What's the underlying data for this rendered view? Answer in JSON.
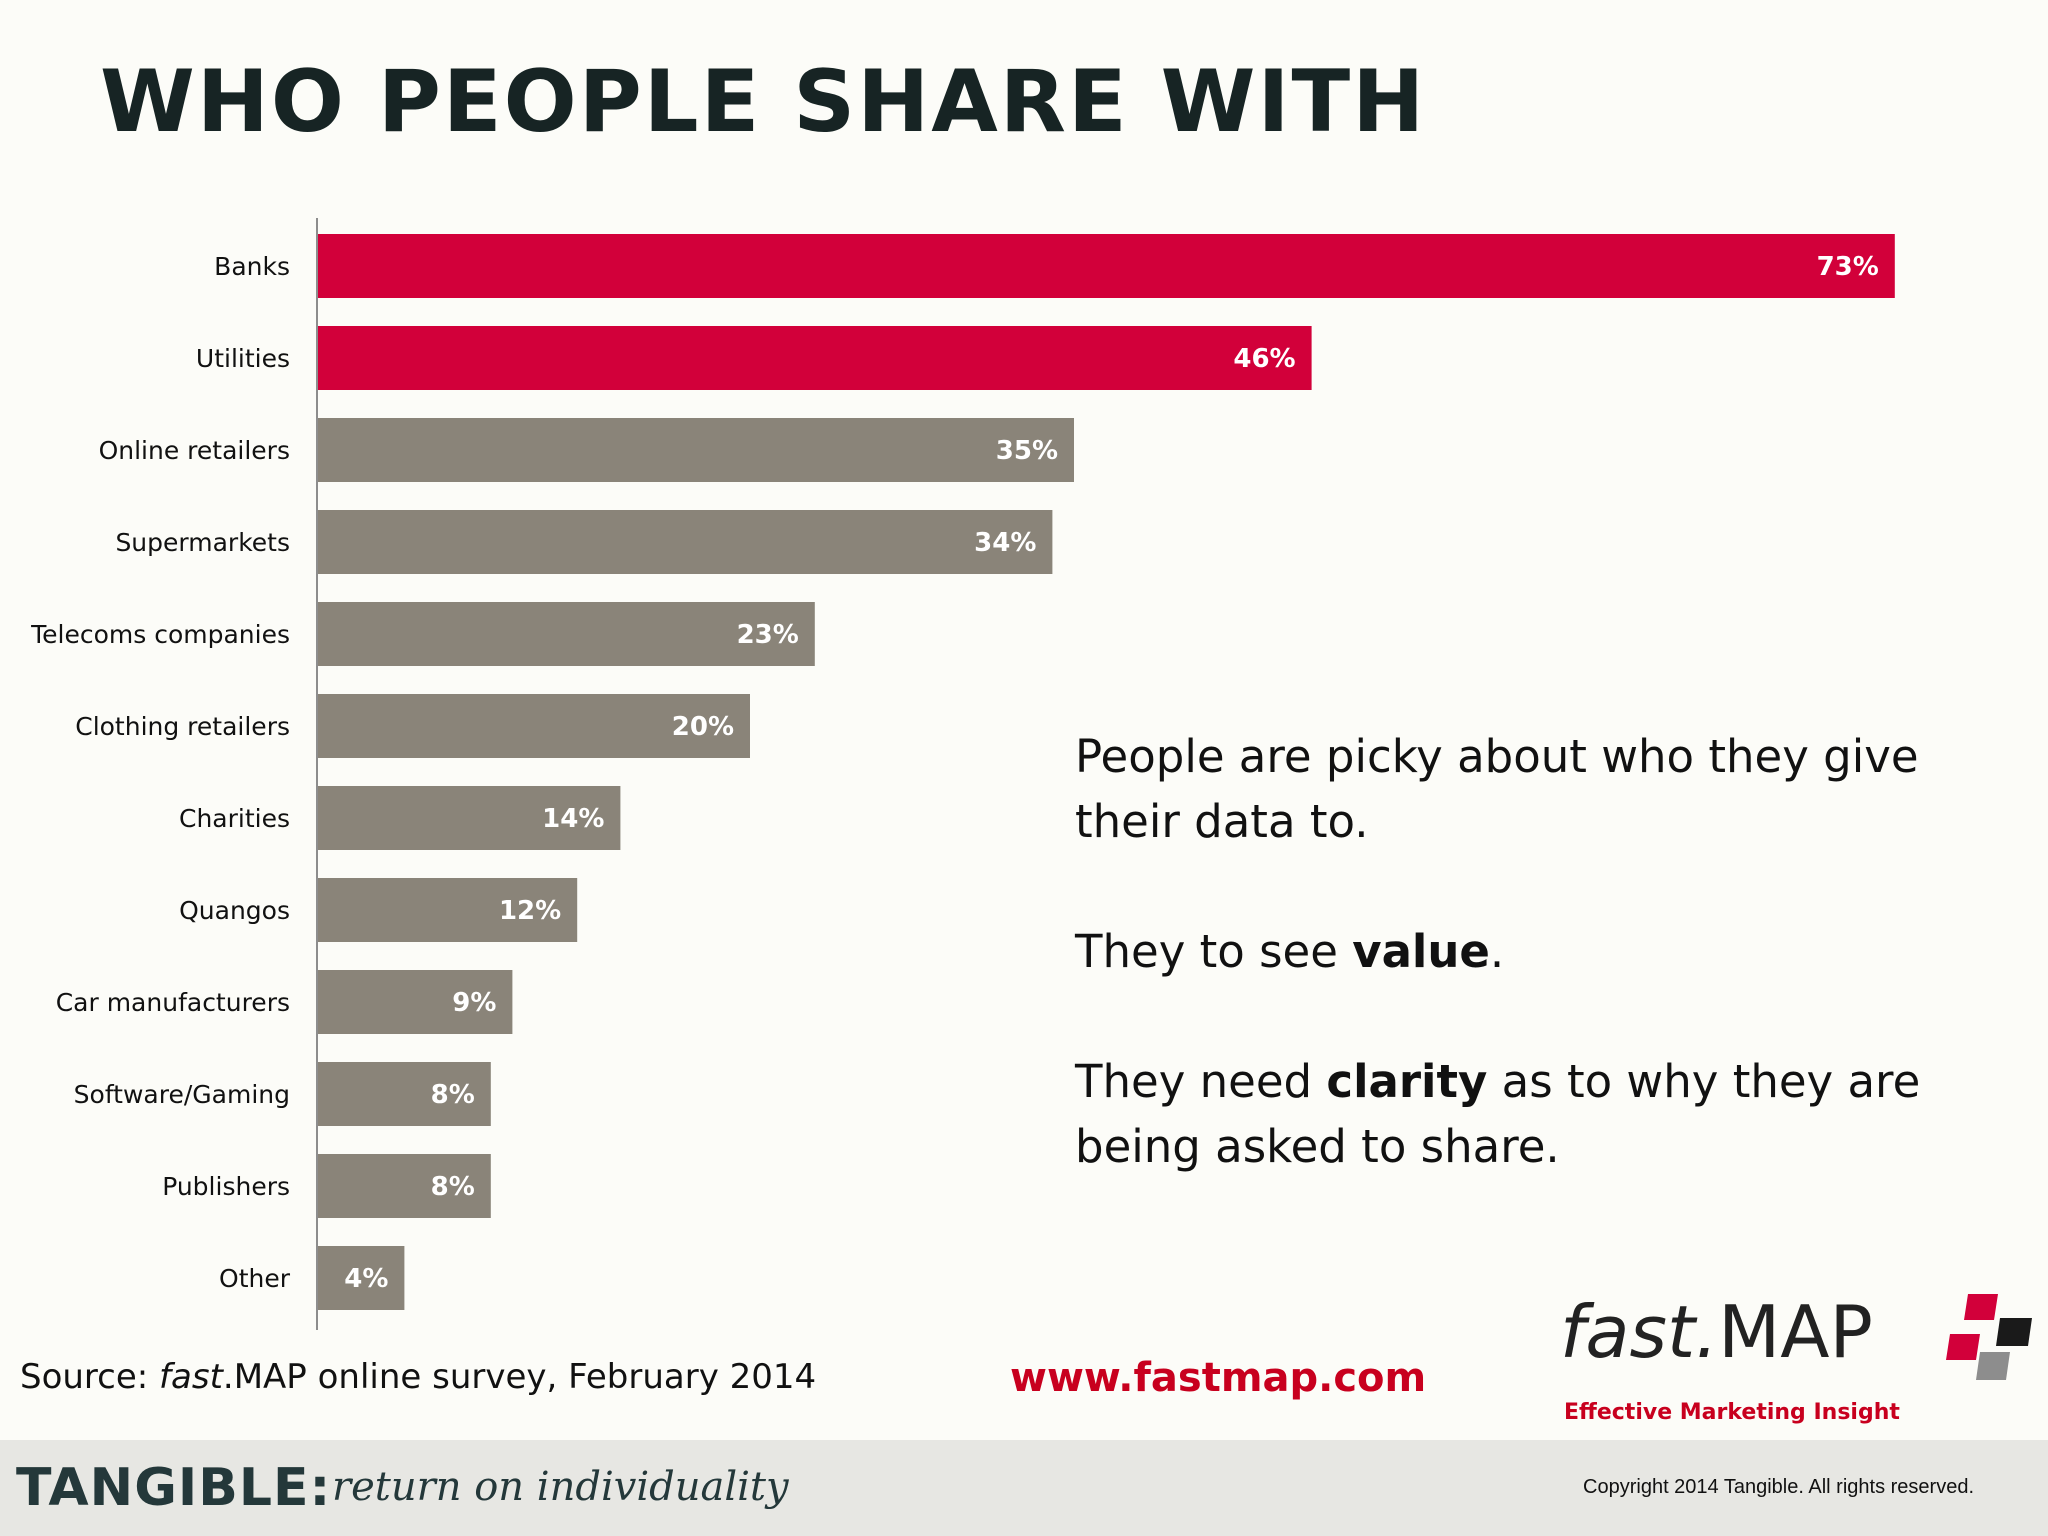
{
  "colors": {
    "highlight": "#d2003a",
    "bar": "#8a8479",
    "axis": "#8d8d8d",
    "url": "#c8001e",
    "brand": "#24383a"
  },
  "chart_data": {
    "type": "bar",
    "orientation": "horizontal",
    "title": "WHO PEOPLE SHARE WITH",
    "categories": [
      "Banks",
      "Utilities",
      "Online retailers",
      "Supermarkets",
      "Telecoms companies",
      "Clothing retailers",
      "Charities",
      "Quangos",
      "Car manufacturers",
      "Software/Gaming",
      "Publishers",
      "Other"
    ],
    "values": [
      73,
      46,
      35,
      34,
      23,
      20,
      14,
      12,
      9,
      8,
      8,
      4
    ],
    "value_labels": [
      "73%",
      "46%",
      "35%",
      "34%",
      "23%",
      "20%",
      "14%",
      "12%",
      "9%",
      "8%",
      "8%",
      "4%"
    ],
    "highlighted": [
      "Banks",
      "Utilities"
    ],
    "xlim": [
      0,
      75
    ],
    "unit": "%",
    "grid": false
  },
  "callout": {
    "line1": "People are picky about who they give their data to.",
    "line2_pre": "They to see ",
    "line2_bold": "value",
    "line2_post": ".",
    "line3_pre": "They need ",
    "line3_bold": "clarity",
    "line3_post": " as to why they are being asked to share."
  },
  "source": {
    "prefix": "Source:  ",
    "italic": "fast",
    "rest": ".MAP online survey, February 2014"
  },
  "url": "www.fastmap.com",
  "logo": {
    "fast": "fast.",
    "map": "MAP",
    "tagline": "Effective Marketing Insight"
  },
  "footer": {
    "brand": "TANGIBLE:",
    "tagline": "return on individuality",
    "copyright": "Copyright 2014 Tangible. All rights reserved."
  }
}
